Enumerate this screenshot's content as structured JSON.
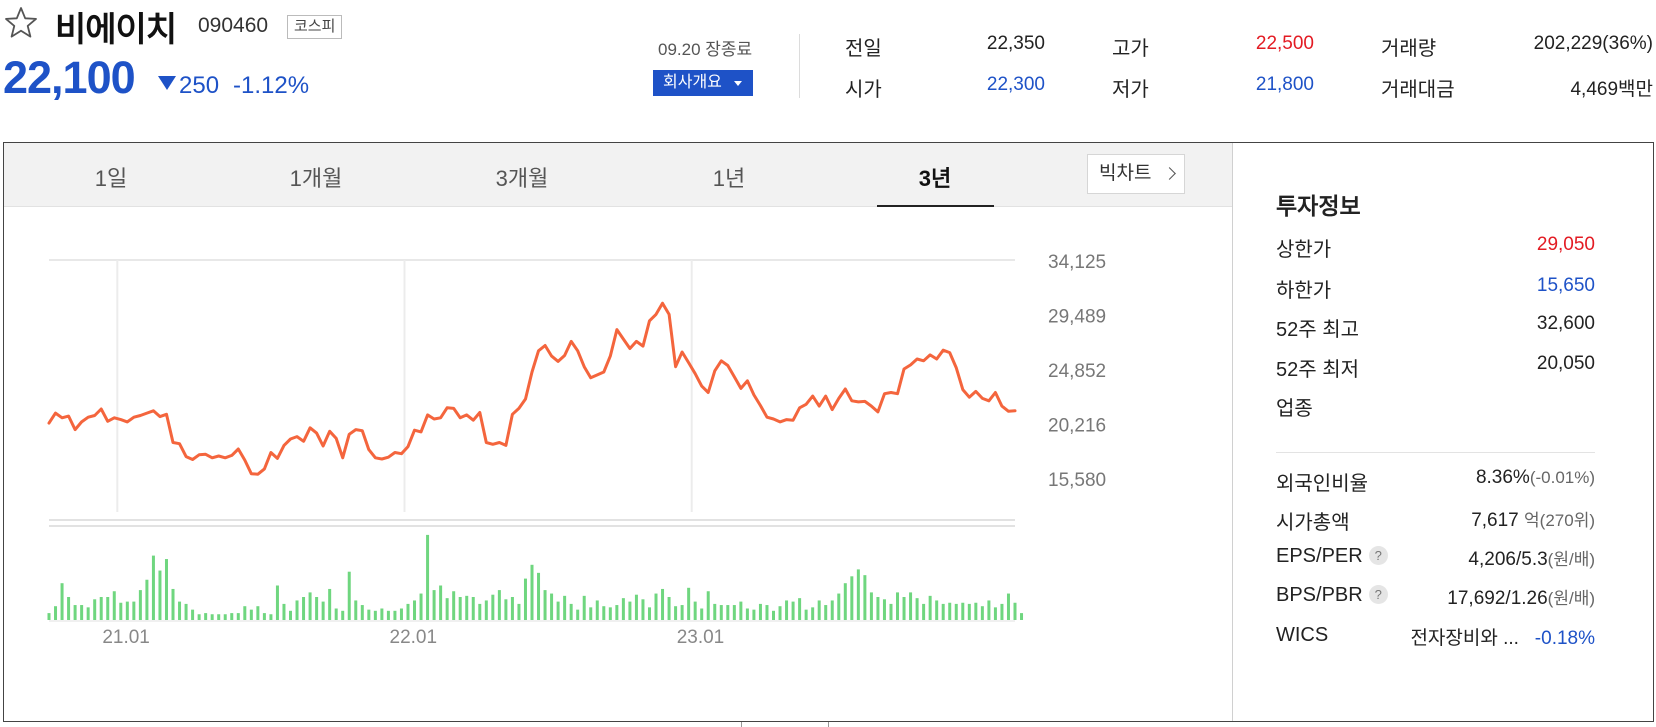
{
  "stock": {
    "name": "비에이치",
    "code": "090460",
    "market": "코스피",
    "price": "22,100",
    "change": "250",
    "change_pct": "-1.12%",
    "date_status": "09.20 장종료",
    "company_button": "회사개요"
  },
  "quotes": {
    "prev_label": "전일",
    "prev_value": "22,350",
    "open_label": "시가",
    "open_value": "22,300",
    "high_label": "고가",
    "high_value": "22,500",
    "low_label": "저가",
    "low_value": "21,800",
    "volume_label": "거래량",
    "volume_value": "202,229(36%)",
    "amount_label": "거래대금",
    "amount_value": "4,469",
    "amount_unit": "백만"
  },
  "tabs": [
    "1일",
    "1개월",
    "3개월",
    "1년",
    "3년"
  ],
  "active_tab": "3년",
  "bigchart_label": "빅차트",
  "colors": {
    "up": "#e31b23",
    "down": "#1e52c7",
    "line": "#f4653d",
    "volume": "#6fd67f"
  },
  "chart_data": {
    "type": "line",
    "title": "",
    "xlabel": "",
    "ylabel": "",
    "x_ticks": [
      "21.01",
      "22.01",
      "23.01"
    ],
    "x_tick_index": [
      12,
      56,
      100
    ],
    "y_ticks": [
      "34,125",
      "29,489",
      "24,852",
      "20,216",
      "15,580"
    ],
    "ylim": [
      13200,
      34125
    ],
    "y_scale_top": 34125,
    "grid": true,
    "legend": "none",
    "price": [
      20250,
      21100,
      20700,
      20850,
      19700,
      20350,
      20750,
      20900,
      21450,
      20400,
      20700,
      20550,
      20350,
      20750,
      20900,
      21100,
      21300,
      20800,
      21000,
      18600,
      18500,
      17400,
      17150,
      17550,
      17600,
      17300,
      17450,
      17300,
      17500,
      18050,
      17100,
      15950,
      15900,
      16350,
      17750,
      17250,
      18350,
      18900,
      19100,
      18700,
      19850,
      19400,
      18300,
      19550,
      18950,
      17300,
      19300,
      19700,
      19600,
      18000,
      17300,
      17200,
      17350,
      17750,
      17650,
      18250,
      19650,
      19500,
      20950,
      20600,
      20700,
      21550,
      21500,
      20700,
      20950,
      20500,
      21150,
      18600,
      18450,
      18600,
      18350,
      21000,
      21500,
      22300,
      24600,
      26400,
      26850,
      25950,
      25500,
      26000,
      27200,
      26400,
      25050,
      24100,
      24350,
      24600,
      25950,
      28200,
      27400,
      26600,
      27200,
      26800,
      28950,
      29500,
      30450,
      29500,
      25050,
      26300,
      25400,
      24450,
      23400,
      22850,
      24700,
      25550,
      25150,
      24200,
      23200,
      23850,
      22650,
      21750,
      20750,
      20600,
      20350,
      20550,
      20500,
      21550,
      21850,
      22550,
      21700,
      22550,
      21400,
      22350,
      23150,
      22150,
      22050,
      22100,
      21700,
      21200,
      22750,
      22850,
      22750,
      24850,
      25200,
      25700,
      25550,
      26050,
      25700,
      26450,
      26250,
      24950,
      23100,
      22450,
      22950,
      22350,
      22150,
      22850,
      21700,
      21250,
      21300
    ],
    "volume": [
      6,
      12,
      32,
      20,
      13,
      13,
      11,
      18,
      20,
      20,
      25,
      15,
      16,
      16,
      26,
      35,
      56,
      43,
      53,
      27,
      16,
      14,
      9,
      5,
      6,
      5,
      5,
      5,
      6,
      6,
      12,
      9,
      12,
      6,
      5,
      30,
      14,
      8,
      17,
      20,
      24,
      20,
      16,
      27,
      10,
      8,
      42,
      17,
      13,
      9,
      8,
      10,
      8,
      8,
      10,
      14,
      17,
      23,
      74,
      26,
      30,
      19,
      25,
      20,
      21,
      20,
      14,
      17,
      22,
      26,
      18,
      20,
      14,
      36,
      48,
      41,
      26,
      23,
      16,
      21,
      14,
      9,
      21,
      11,
      17,
      12,
      11,
      13,
      19,
      16,
      22,
      18,
      11,
      23,
      27,
      20,
      12,
      13,
      28,
      16,
      10,
      25,
      14,
      13,
      13,
      13,
      16,
      10,
      9,
      14,
      13,
      8,
      12,
      17,
      16,
      19,
      9,
      11,
      17,
      13,
      17,
      23,
      32,
      38,
      44,
      39,
      24,
      20,
      18,
      14,
      24,
      20,
      24,
      19,
      14,
      21,
      17,
      14,
      15,
      14,
      15,
      14,
      15,
      12,
      17,
      11,
      14,
      23,
      15,
      6
    ]
  },
  "invest": {
    "title": "투자정보",
    "upper_limit_label": "상한가",
    "upper_limit": "29,050",
    "lower_limit_label": "하한가",
    "lower_limit": "15,650",
    "w52_high_label": "52주 최고",
    "w52_high": "32,600",
    "w52_low_label": "52주 최저",
    "w52_low": "20,050",
    "sector_label": "업종",
    "foreign_label": "외국인비율",
    "foreign_value": "8.36%",
    "foreign_change": "(-0.01%)",
    "mcap_label": "시가총액",
    "mcap_value": "7,617",
    "mcap_unit": "억",
    "mcap_rank": "(270위)",
    "eps_label": "EPS/PER",
    "eps_value": "4,206/5.3",
    "eps_unit": "(원/배)",
    "bps_label": "BPS/PBR",
    "bps_value": "17,692/1.26",
    "bps_unit": "(원/배)",
    "wics_label": "WICS",
    "wics_value": "전자장비와 ...",
    "wics_change": "-0.18%",
    "help_mark": "?"
  }
}
